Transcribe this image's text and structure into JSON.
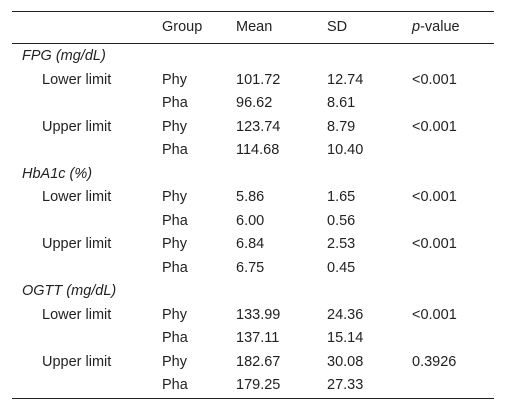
{
  "header": {
    "label": "",
    "group": "Group",
    "mean": "Mean",
    "sd": "SD",
    "p_italic": "p",
    "p_rest": "-value"
  },
  "rows": [
    {
      "label": "FPG (mg/dL)",
      "type": "section",
      "group": "",
      "mean": "",
      "sd": "",
      "p": ""
    },
    {
      "label": "Lower limit",
      "type": "sub",
      "group": "Phy",
      "mean": "101.72",
      "sd": "12.74",
      "p": "<0.001"
    },
    {
      "label": "",
      "type": "sub",
      "group": "Pha",
      "mean": "96.62",
      "sd": "8.61",
      "p": ""
    },
    {
      "label": "Upper limit",
      "type": "sub",
      "group": "Phy",
      "mean": "123.74",
      "sd": "8.79",
      "p": "<0.001"
    },
    {
      "label": "",
      "type": "sub",
      "group": "Pha",
      "mean": "114.68",
      "sd": "10.40",
      "p": ""
    },
    {
      "label": "HbA1c (%)",
      "type": "section",
      "group": "",
      "mean": "",
      "sd": "",
      "p": ""
    },
    {
      "label": "Lower limit",
      "type": "sub",
      "group": "Phy",
      "mean": "5.86",
      "sd": "1.65",
      "p": "<0.001"
    },
    {
      "label": "",
      "type": "sub",
      "group": "Pha",
      "mean": "6.00",
      "sd": "0.56",
      "p": ""
    },
    {
      "label": "Upper limit",
      "type": "sub",
      "group": "Phy",
      "mean": "6.84",
      "sd": "2.53",
      "p": "<0.001"
    },
    {
      "label": "",
      "type": "sub",
      "group": "Pha",
      "mean": "6.75",
      "sd": "0.45",
      "p": ""
    },
    {
      "label": "OGTT (mg/dL)",
      "type": "section",
      "group": "",
      "mean": "",
      "sd": "",
      "p": ""
    },
    {
      "label": "Lower limit",
      "type": "sub",
      "group": "Phy",
      "mean": "133.99",
      "sd": "24.36",
      "p": "<0.001"
    },
    {
      "label": "",
      "type": "sub",
      "group": "Pha",
      "mean": "137.11",
      "sd": "15.14",
      "p": ""
    },
    {
      "label": "Upper limit",
      "type": "sub",
      "group": "Phy",
      "mean": "182.67",
      "sd": "30.08",
      "p": "0.3926"
    },
    {
      "label": "",
      "type": "sub",
      "group": "Pha",
      "mean": "179.25",
      "sd": "27.33",
      "p": ""
    }
  ]
}
